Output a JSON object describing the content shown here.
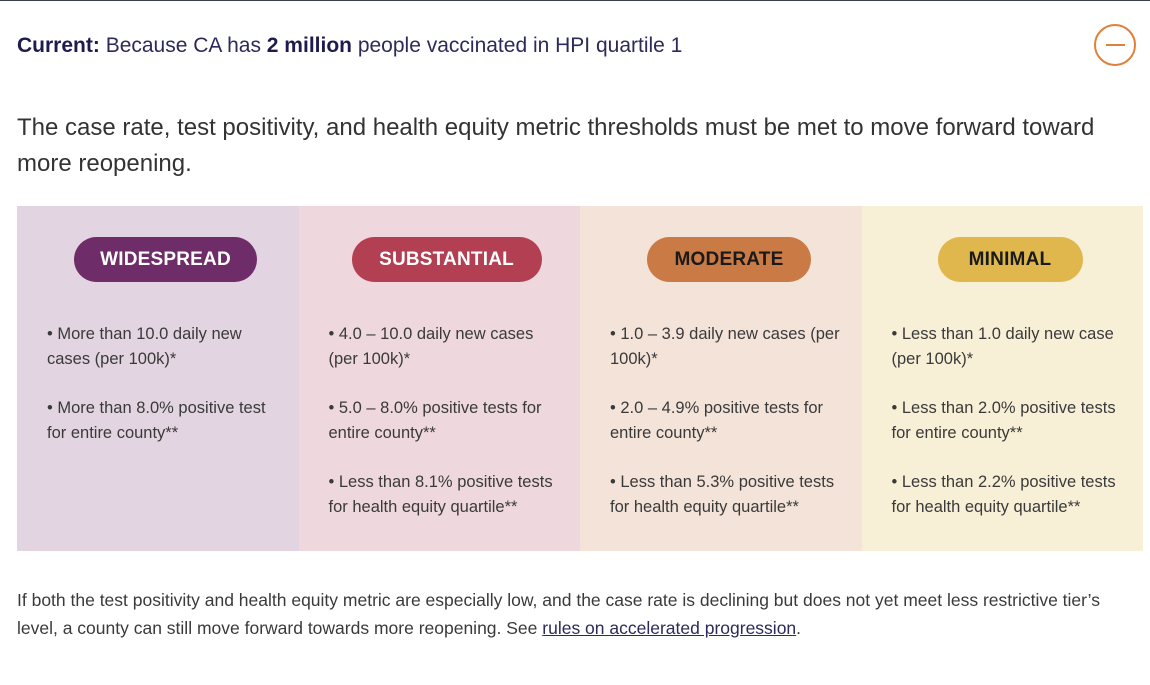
{
  "header": {
    "label": "Current:",
    "text_before": "Because CA has",
    "highlight": "2 million",
    "text_after": "people vaccinated in HPI quartile 1",
    "collapse_icon": "minus-circle-icon",
    "accent_color": "#e0803a"
  },
  "lead": "The case rate, test positivity, and health equity metric thresholds must be met to move forward toward more reopening.",
  "tiers": [
    {
      "name": "WIDESPREAD",
      "color": "#6e2c68",
      "items": [
        "• More than 10.0 daily new cases (per 100k)*",
        "• More than 8.0% positive test for entire county**"
      ]
    },
    {
      "name": "SUBSTANTIAL",
      "color": "#b23f52",
      "items": [
        "• 4.0 – 10.0 daily new cases (per 100k)*",
        "• 5.0 – 8.0% positive tests for entire county**",
        "• Less than 8.1% positive tests for health equity quartile**"
      ]
    },
    {
      "name": "MODERATE",
      "color": "#c97a45",
      "items": [
        "• 1.0 – 3.9 daily new cases (per 100k)*",
        "• 2.0 – 4.9% positive tests for entire county**",
        "• Less than 5.3% positive tests for health equity quartile**"
      ]
    },
    {
      "name": "MINIMAL",
      "color": "#dfb74d",
      "items": [
        "• Less than 1.0 daily new case (per 100k)*",
        "• Less than 2.0% positive tests for entire county**",
        "• Less than 2.2% positive tests for health equity quartile**"
      ]
    }
  ],
  "footer": {
    "text": "If both the test positivity and health equity metric are especially low, and the case rate is declining but does not yet meet less restrictive tier’s level, a county can still move forward towards more reopening. See ",
    "link_text": "rules on accelerated progression",
    "text_after": "."
  }
}
